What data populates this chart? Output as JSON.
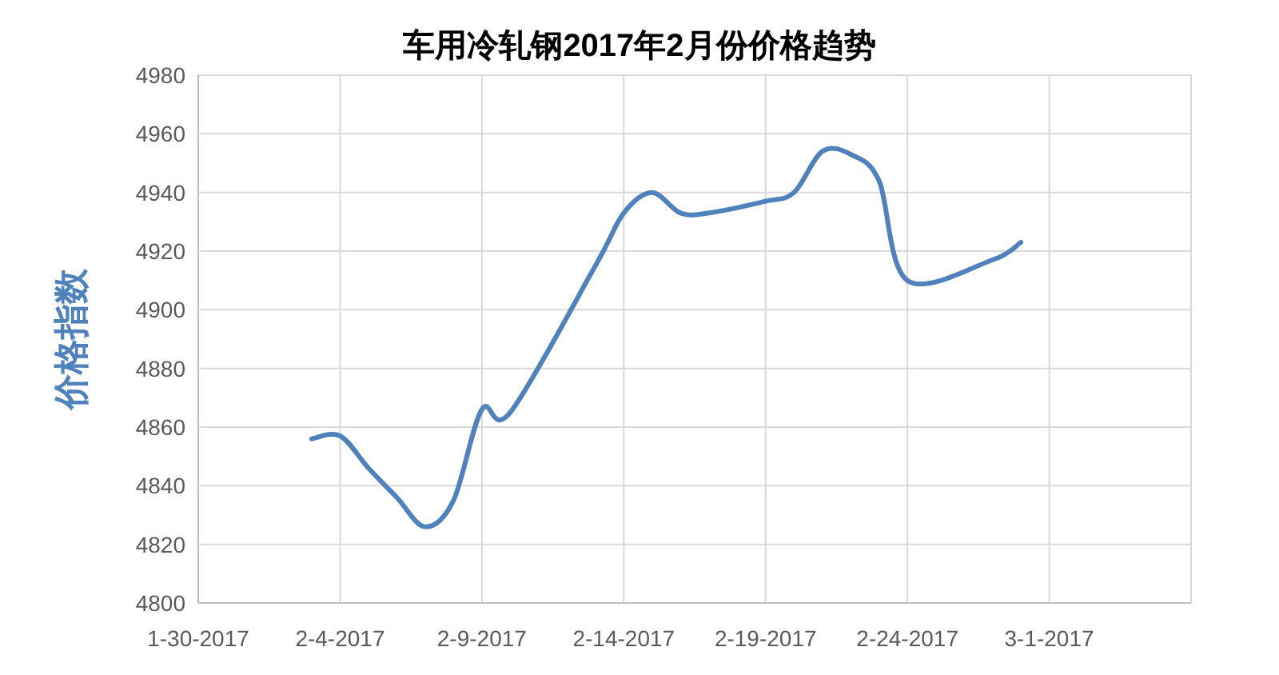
{
  "chart_data": {
    "type": "line",
    "title": "车用冷轧钢2017年2月份价格趋势",
    "ylabel": "价格指数",
    "x": [
      "2017-02-03",
      "2017-02-04",
      "2017-02-05",
      "2017-02-06",
      "2017-02-07",
      "2017-02-08",
      "2017-02-09",
      "2017-02-10",
      "2017-02-13",
      "2017-02-14",
      "2017-02-15",
      "2017-02-16",
      "2017-02-17",
      "2017-02-19",
      "2017-02-20",
      "2017-02-21",
      "2017-02-22",
      "2017-02-23",
      "2017-02-24",
      "2017-02-27",
      "2017-02-28"
    ],
    "series": [
      {
        "color": "#4f81bd",
        "values": [
          4856,
          4857,
          4846,
          4836,
          4826,
          4835,
          4866,
          4865,
          4915,
          4933,
          4940,
          4933,
          4933,
          4937,
          4940,
          4954,
          4953,
          4944,
          4910,
          4917,
          4923
        ]
      }
    ],
    "xlim": [
      "2017-01-30",
      "2017-03-06"
    ],
    "xticks": [
      {
        "value": "2017-01-30",
        "label": "1-30-2017"
      },
      {
        "value": "2017-02-04",
        "label": "2-4-2017"
      },
      {
        "value": "2017-02-09",
        "label": "2-9-2017"
      },
      {
        "value": "2017-02-14",
        "label": "2-14-2017"
      },
      {
        "value": "2017-02-19",
        "label": "2-19-2017"
      },
      {
        "value": "2017-02-24",
        "label": "2-24-2017"
      },
      {
        "value": "2017-03-01",
        "label": "3-1-2017"
      },
      {
        "value": "2017-03-06",
        "label": null
      }
    ],
    "ylim": [
      4800,
      4980
    ],
    "yticks": [
      4800,
      4820,
      4840,
      4860,
      4880,
      4900,
      4920,
      4940,
      4960,
      4980
    ],
    "grid": true
  }
}
